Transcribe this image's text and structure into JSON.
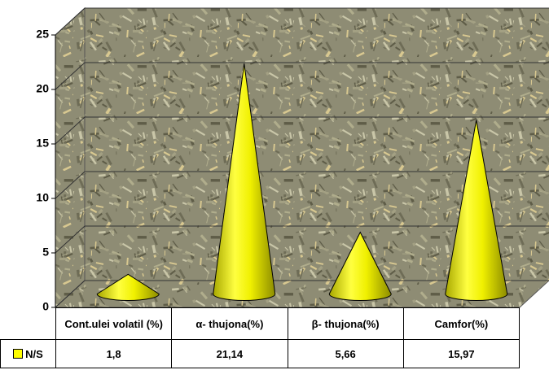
{
  "chart_data": {
    "type": "cone3d",
    "categories": [
      "Cont.ulei volatil (%)",
      "α- thujona(%)",
      "β- thujona(%)",
      "Camfor(%)"
    ],
    "series": [
      {
        "name": "N/S",
        "color": "#ffff00",
        "values": [
          1.8,
          21.14,
          5.66,
          15.97
        ],
        "value_labels": [
          "1,8",
          "21,14",
          "5,66",
          "15,97"
        ]
      }
    ],
    "ylim": [
      0,
      25
    ],
    "yticks": [
      0,
      5,
      10,
      15,
      20,
      25
    ],
    "grid": true
  }
}
